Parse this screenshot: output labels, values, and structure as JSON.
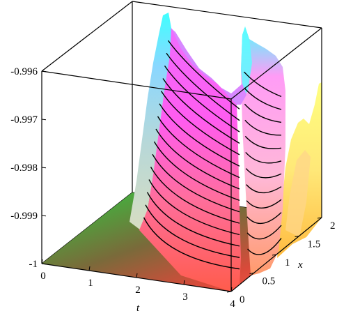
{
  "chart_data": {
    "type": "surface3d",
    "title": "",
    "axes": {
      "t": {
        "label": "t",
        "range": [
          0,
          4
        ],
        "ticks": [
          "0",
          "1",
          "2",
          "3",
          "4"
        ]
      },
      "x": {
        "label": "x",
        "range": [
          0,
          2
        ],
        "ticks": [
          "0",
          "0.5",
          "1",
          "1.5",
          "2"
        ]
      },
      "z": {
        "label": "",
        "range": [
          -1,
          -0.996
        ],
        "ticks": [
          "-1",
          "-0.999",
          "-0.998",
          "-0.997",
          "-0.996"
        ]
      }
    },
    "surface": {
      "baseline": -1,
      "ridges": [
        {
          "x": 0.2,
          "peak_t_start": 2.0,
          "value_at_peak": -0.996
        },
        {
          "x": 1.1,
          "peak_t_start": 3.0,
          "value_at_peak": -0.9964
        },
        {
          "x": 1.75,
          "peak_t_start": 3.5,
          "value_at_peak": -0.9975
        }
      ]
    },
    "contour_levels": [
      -0.99975,
      -0.9995,
      -0.99925,
      -0.999,
      -0.99875,
      -0.9985,
      -0.99825,
      -0.998,
      -0.99775,
      -0.9975,
      -0.99725,
      -0.997,
      -0.99675,
      -0.9965,
      -0.99625
    ],
    "colors": {
      "low": "#ff5a4a",
      "mid_low": "#3fc94a",
      "mid": "#ff66ff",
      "cyan": "#40ffff",
      "high": "#ffff66",
      "box": "#000000"
    }
  }
}
